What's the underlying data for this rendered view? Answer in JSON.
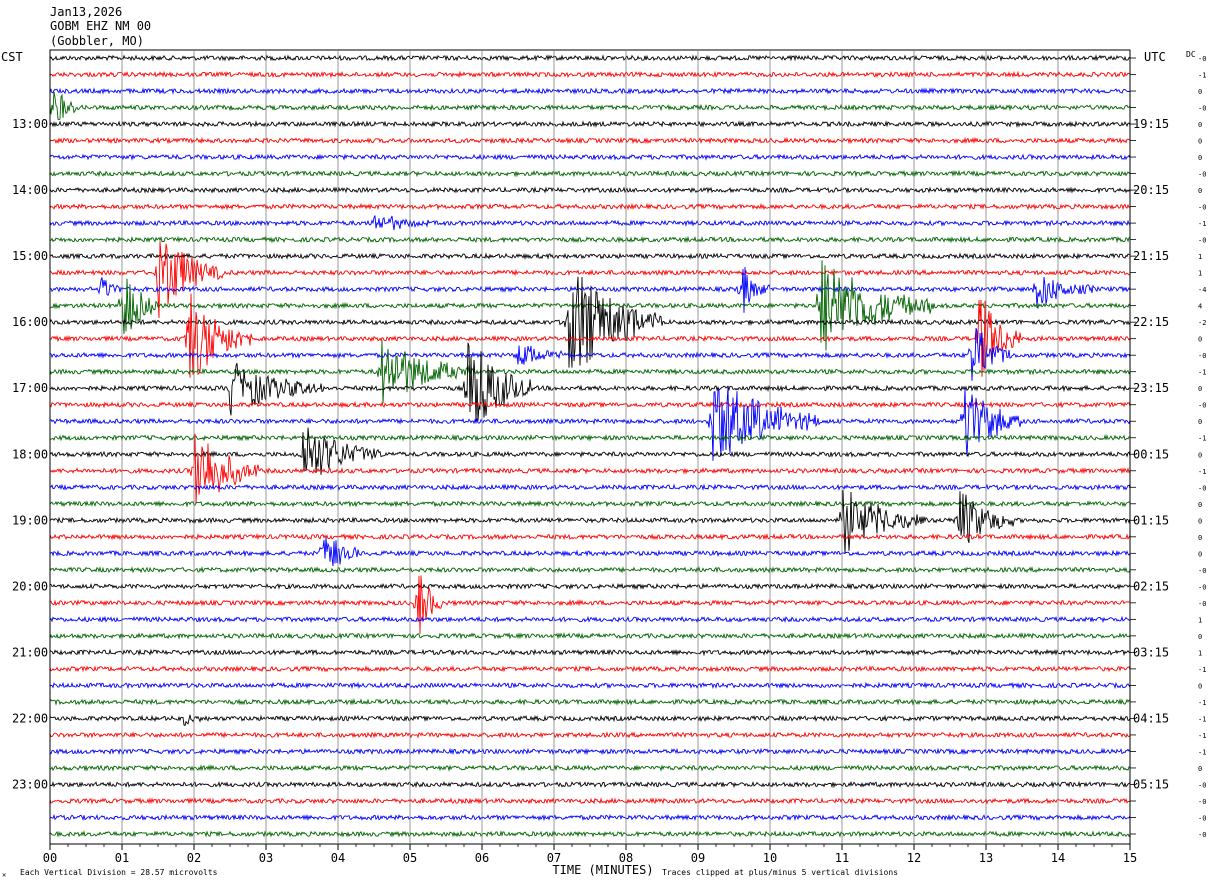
{
  "header": {
    "date": "Jan13,2026",
    "station": "GOBM EHZ NM 00",
    "location": "(Gobbler, MO)"
  },
  "labels": {
    "left_tz": "CST",
    "right_tz": "UTC",
    "dc": "DC",
    "xlabel": "TIME (MINUTES)",
    "footer_left_symbol": "✕",
    "footer_division": "Each Vertical Division =   28.57 microvolts",
    "footer_clip": "Traces clipped at plus/minus 5 vertical divisions"
  },
  "colors": {
    "trace_cycle": [
      "#000000",
      "#ff0000",
      "#0000ff",
      "#006400"
    ],
    "grid": "#808080",
    "text": "#000000"
  },
  "chart_data": {
    "type": "helicorder",
    "x_minutes_range": [
      0,
      15
    ],
    "x_tick_labels": [
      "00",
      "01",
      "02",
      "03",
      "04",
      "05",
      "06",
      "07",
      "08",
      "09",
      "10",
      "11",
      "12",
      "13",
      "14",
      "15"
    ],
    "trace_count": 48,
    "minutes_per_trace": 15,
    "first_trace_start_cst": "12:15",
    "left_hour_labels": [
      {
        "trace": 4,
        "label": "13:00"
      },
      {
        "trace": 8,
        "label": "14:00"
      },
      {
        "trace": 12,
        "label": "15:00"
      },
      {
        "trace": 16,
        "label": "16:00"
      },
      {
        "trace": 20,
        "label": "17:00"
      },
      {
        "trace": 24,
        "label": "18:00"
      },
      {
        "trace": 28,
        "label": "19:00"
      },
      {
        "trace": 32,
        "label": "20:00"
      },
      {
        "trace": 36,
        "label": "21:00"
      },
      {
        "trace": 40,
        "label": "22:00"
      },
      {
        "trace": 44,
        "label": "23:00"
      }
    ],
    "right_hour_labels": [
      {
        "trace": 4,
        "label": "19:15"
      },
      {
        "trace": 8,
        "label": "20:15"
      },
      {
        "trace": 12,
        "label": "21:15"
      },
      {
        "trace": 16,
        "label": "22:15"
      },
      {
        "trace": 20,
        "label": "23:15"
      },
      {
        "trace": 24,
        "label": "00:15"
      },
      {
        "trace": 28,
        "label": "01:15"
      },
      {
        "trace": 32,
        "label": "02:15"
      },
      {
        "trace": 36,
        "label": "03:15"
      },
      {
        "trace": 40,
        "label": "04:15"
      },
      {
        "trace": 44,
        "label": "05:15"
      }
    ],
    "dc_offsets": [
      "-0",
      "-1",
      "0",
      "-0",
      "0",
      "0",
      "0",
      "-0",
      "0",
      "-0",
      "-1",
      "-0",
      "1",
      "1",
      "-4",
      "4",
      "-2",
      "0",
      "-0",
      "-1",
      "0",
      "-0",
      "0",
      "-1",
      "0",
      "-1",
      "-0",
      "0",
      "0",
      "0",
      "0",
      "-0",
      "-0",
      "-0",
      "1",
      "0",
      "1",
      "-1",
      "0",
      "-1",
      "-1",
      "-1",
      "-1",
      "0",
      "-0",
      "-0",
      "-0",
      "-0"
    ],
    "events": [
      {
        "trace": 3,
        "minute": 0.05,
        "amp": 2.0,
        "dur": 0.3
      },
      {
        "trace": 10,
        "minute": 4.5,
        "amp": 0.8,
        "dur": 0.8
      },
      {
        "trace": 14,
        "minute": 9.6,
        "amp": 2.0,
        "dur": 0.4
      },
      {
        "trace": 15,
        "minute": 1.0,
        "amp": 3.0,
        "dur": 0.5
      },
      {
        "trace": 13,
        "minute": 1.5,
        "amp": 3.5,
        "dur": 0.9
      },
      {
        "trace": 15,
        "minute": 10.7,
        "amp": 3.5,
        "dur": 1.6
      },
      {
        "trace": 16,
        "minute": 7.2,
        "amp": 4.5,
        "dur": 1.3
      },
      {
        "trace": 17,
        "minute": 1.9,
        "amp": 3.5,
        "dur": 1.0
      },
      {
        "trace": 17,
        "minute": 12.9,
        "amp": 3.5,
        "dur": 0.6
      },
      {
        "trace": 18,
        "minute": 6.5,
        "amp": 1.2,
        "dur": 0.6
      },
      {
        "trace": 18,
        "minute": 12.8,
        "amp": 2.5,
        "dur": 0.6
      },
      {
        "trace": 19,
        "minute": 4.6,
        "amp": 2.5,
        "dur": 1.3
      },
      {
        "trace": 20,
        "minute": 2.5,
        "amp": 2.0,
        "dur": 1.3
      },
      {
        "trace": 20,
        "minute": 5.8,
        "amp": 4.0,
        "dur": 0.9
      },
      {
        "trace": 22,
        "minute": 9.2,
        "amp": 3.5,
        "dur": 1.5
      },
      {
        "trace": 22,
        "minute": 12.7,
        "amp": 3.0,
        "dur": 0.8
      },
      {
        "trace": 24,
        "minute": 3.5,
        "amp": 2.5,
        "dur": 1.1
      },
      {
        "trace": 25,
        "minute": 2.0,
        "amp": 3.5,
        "dur": 0.9
      },
      {
        "trace": 28,
        "minute": 11.0,
        "amp": 2.5,
        "dur": 1.2
      },
      {
        "trace": 28,
        "minute": 12.6,
        "amp": 2.5,
        "dur": 0.8
      },
      {
        "trace": 30,
        "minute": 3.8,
        "amp": 2.0,
        "dur": 0.5
      },
      {
        "trace": 33,
        "minute": 5.1,
        "amp": 3.0,
        "dur": 0.35
      },
      {
        "trace": 40,
        "minute": 1.85,
        "amp": 0.7,
        "dur": 0.3
      },
      {
        "trace": 14,
        "minute": 13.7,
        "amp": 1.5,
        "dur": 0.8
      },
      {
        "trace": 14,
        "minute": 0.7,
        "amp": 1.2,
        "dur": 0.3
      }
    ]
  }
}
